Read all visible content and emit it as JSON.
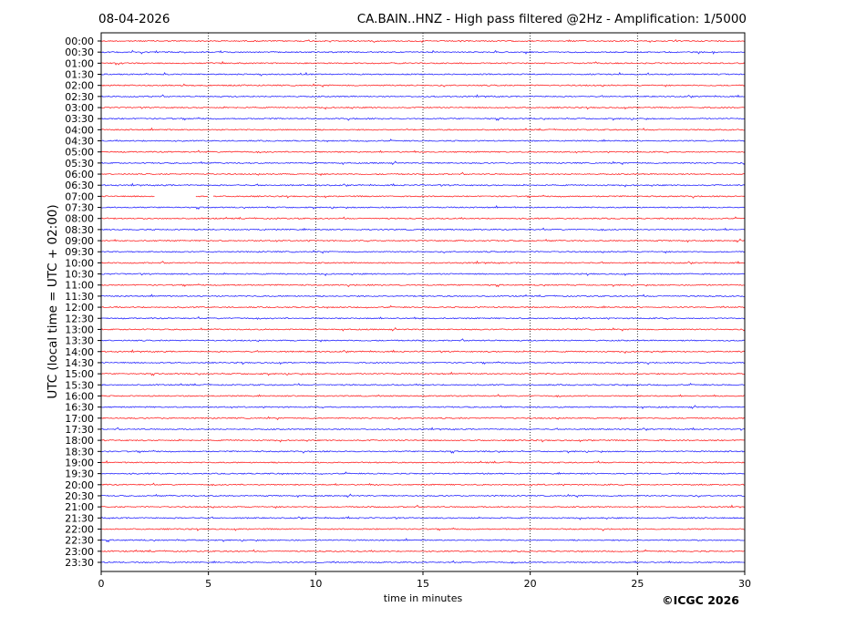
{
  "header": {
    "date": "08-04-2026",
    "title": "CA.BAIN..HNZ - High pass filtered @2Hz - Amplification: 1/5000"
  },
  "copyright": "©ICGC 2026",
  "chart_data": {
    "type": "line",
    "title": "CA.BAIN..HNZ - High pass filtered @2Hz - Amplification: 1/5000",
    "xlabel": "time in minutes",
    "ylabel": "UTC (local time = UTC + 02:00)",
    "xlim": [
      0,
      30
    ],
    "xticks": [
      0,
      5,
      10,
      15,
      20,
      25,
      30
    ],
    "grid_x": [
      5,
      10,
      15,
      20,
      25
    ],
    "grid": "vertical dotted",
    "row_labels": [
      "00:00",
      "00:30",
      "01:00",
      "01:30",
      "02:00",
      "02:30",
      "03:00",
      "03:30",
      "04:00",
      "04:30",
      "05:00",
      "05:30",
      "06:00",
      "06:30",
      "07:00",
      "07:30",
      "08:00",
      "08:30",
      "09:00",
      "09:30",
      "10:00",
      "10:30",
      "11:00",
      "11:30",
      "12:00",
      "12:30",
      "13:00",
      "13:30",
      "14:00",
      "14:30",
      "15:00",
      "15:30",
      "16:00",
      "16:30",
      "17:00",
      "17:30",
      "18:00",
      "18:30",
      "19:00",
      "19:30",
      "20:00",
      "20:30",
      "21:00",
      "21:30",
      "22:00",
      "22:30",
      "23:00",
      "23:30"
    ],
    "colors": [
      "#ff0000",
      "#0000ff"
    ],
    "data_gaps": [
      {
        "row": "07:00",
        "from": 2.5,
        "to": 4.4
      },
      {
        "row": "07:00",
        "from": 5.0,
        "to": 5.2
      }
    ]
  }
}
